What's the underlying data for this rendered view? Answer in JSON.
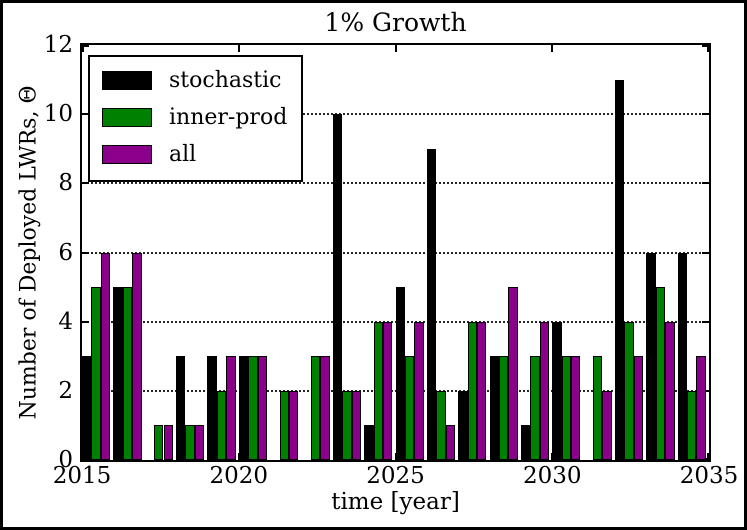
{
  "figure": {
    "title": "1% Growth",
    "xlabel": "time [year]",
    "ylabel": "Number of Deployed LWRs, Θ"
  },
  "legend": {
    "position": "upper left",
    "entries": [
      {
        "label": "stochastic",
        "color": "#000000"
      },
      {
        "label": "inner-prod",
        "color": "#008000"
      },
      {
        "label": "all",
        "color": "#8a008a"
      }
    ]
  },
  "chart_data": {
    "type": "bar",
    "title": "1% Growth",
    "xlabel": "time [year]",
    "ylabel": "Number of Deployed LWRs, Θ",
    "categories": [
      2015,
      2016,
      2017,
      2018,
      2019,
      2020,
      2021,
      2022,
      2023,
      2024,
      2025,
      2026,
      2027,
      2028,
      2029,
      2030,
      2031,
      2032,
      2033,
      2034
    ],
    "series": [
      {
        "name": "stochastic",
        "color": "#000000",
        "values": [
          3,
          5,
          0,
          3,
          3,
          3,
          0,
          0,
          10,
          1,
          5,
          9,
          2,
          3,
          1,
          4,
          0,
          11,
          6,
          6
        ]
      },
      {
        "name": "inner-prod",
        "color": "#008000",
        "values": [
          5,
          5,
          1,
          1,
          2,
          3,
          2,
          3,
          2,
          4,
          3,
          2,
          4,
          3,
          3,
          3,
          3,
          4,
          5,
          2
        ]
      },
      {
        "name": "all",
        "color": "#8a008a",
        "values": [
          6,
          6,
          1,
          1,
          3,
          3,
          2,
          3,
          2,
          4,
          4,
          1,
          4,
          5,
          4,
          3,
          2,
          3,
          4,
          3
        ]
      }
    ],
    "xlim": [
      2015,
      2035
    ],
    "ylim": [
      0,
      12
    ],
    "x_ticks": [
      2015,
      2020,
      2025,
      2030,
      2035
    ],
    "y_ticks": [
      0,
      2,
      4,
      6,
      8,
      10,
      12
    ],
    "grid": "horizontal dotted lines at y = 2,4,6,8,10",
    "legend_position": "upper left",
    "bar_width_years": 0.3,
    "bar_group_anchor": "bars start at year tick, series side by side"
  }
}
